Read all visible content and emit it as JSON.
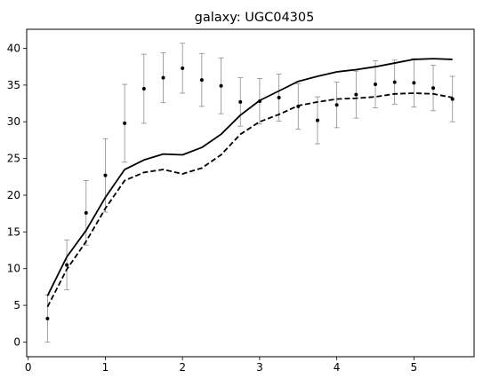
{
  "chart_data": {
    "type": "scatter",
    "title": "galaxy: UGC04305",
    "xlabel": "",
    "ylabel": "",
    "xlim": [
      -0.02,
      5.78
    ],
    "ylim": [
      -2.0,
      42.6
    ],
    "xticks": [
      0,
      1,
      2,
      3,
      4,
      5
    ],
    "yticks": [
      0,
      5,
      10,
      15,
      20,
      25,
      30,
      35,
      40
    ],
    "grid": false,
    "legend": "none",
    "observed": {
      "x": [
        0.25,
        0.5,
        0.75,
        1.0,
        1.25,
        1.5,
        1.75,
        2.0,
        2.25,
        2.5,
        2.75,
        3.0,
        3.25,
        3.5,
        3.75,
        4.0,
        4.25,
        4.5,
        4.75,
        5.0,
        5.25,
        5.5
      ],
      "y": [
        3.2,
        10.5,
        17.6,
        22.7,
        29.8,
        34.5,
        36.0,
        37.3,
        35.7,
        34.9,
        32.7,
        32.8,
        33.3,
        32.1,
        30.2,
        32.3,
        33.7,
        35.1,
        35.4,
        35.3,
        34.6,
        33.1
      ],
      "err": [
        3.2,
        3.4,
        4.4,
        5.0,
        5.3,
        4.7,
        3.4,
        3.4,
        3.6,
        3.8,
        3.3,
        3.1,
        3.2,
        3.1,
        3.2,
        3.1,
        3.2,
        3.2,
        3.0,
        3.3,
        3.1,
        3.1
      ],
      "color": "#000000",
      "error_color": "#8c8c8c"
    },
    "series": [
      {
        "style": "solid",
        "color": "#000000",
        "x": [
          0.25,
          0.5,
          0.75,
          1.0,
          1.25,
          1.5,
          1.75,
          2.0,
          2.25,
          2.5,
          2.75,
          3.0,
          3.25,
          3.5,
          3.75,
          4.0,
          4.25,
          4.5,
          4.75,
          5.0,
          5.25,
          5.5
        ],
        "y": [
          6.3,
          11.6,
          15.2,
          19.7,
          23.5,
          24.8,
          25.6,
          25.5,
          26.5,
          28.3,
          30.9,
          32.9,
          34.2,
          35.5,
          36.2,
          36.8,
          37.1,
          37.5,
          38.0,
          38.5,
          38.6,
          38.5
        ]
      },
      {
        "style": "dashed",
        "color": "#000000",
        "x": [
          0.25,
          0.5,
          0.75,
          1.0,
          1.25,
          1.5,
          1.75,
          2.0,
          2.25,
          2.5,
          2.75,
          3.0,
          3.25,
          3.5,
          3.75,
          4.0,
          4.25,
          4.5,
          4.75,
          5.0,
          5.25,
          5.5
        ],
        "y": [
          4.8,
          9.9,
          13.7,
          18.2,
          22.0,
          23.1,
          23.5,
          22.9,
          23.7,
          25.5,
          28.3,
          30.0,
          31.0,
          32.2,
          32.7,
          33.1,
          33.2,
          33.4,
          33.8,
          33.9,
          33.8,
          33.3
        ]
      }
    ]
  }
}
